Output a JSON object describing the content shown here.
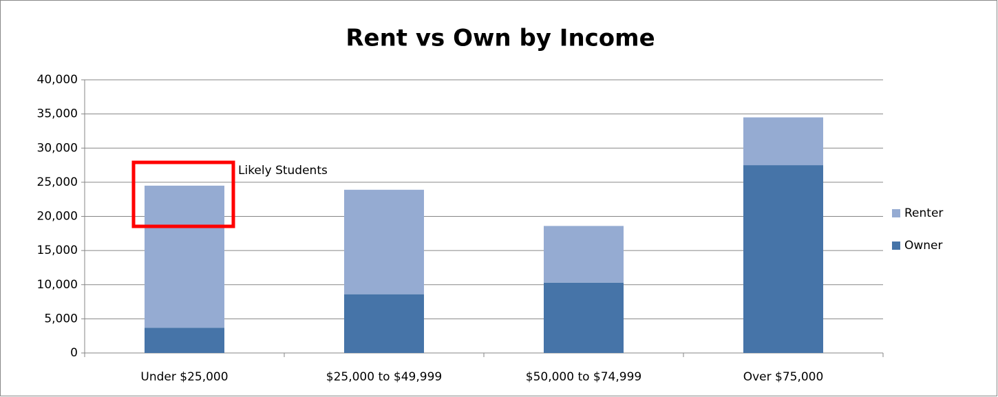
{
  "chart_data": {
    "type": "stacked_bar",
    "title": "Rent vs Own by Income",
    "categories": [
      "Under $25,000",
      "$25,000 to $49,999",
      "$50,000 to $74,999",
      "Over $75,000"
    ],
    "series": [
      {
        "name": "Owner",
        "color": "#4674a8",
        "values": [
          3700,
          8600,
          10300,
          27500
        ]
      },
      {
        "name": "Renter",
        "color": "#95abd2",
        "values": [
          20800,
          15300,
          8300,
          7000
        ]
      }
    ],
    "ylim": [
      0,
      40000
    ],
    "yticks": [
      0,
      {
        "value": 5000,
        "label": "5,000"
      },
      {
        "value": 10000,
        "label": "10,000"
      },
      {
        "value": 15000,
        "label": "15,000"
      },
      {
        "value": 20000,
        "label": "20,000"
      },
      {
        "value": 25000,
        "label": "25,000"
      },
      {
        "value": 30000,
        "label": "30,000"
      },
      {
        "value": 35000,
        "label": "35,000"
      },
      {
        "value": 40000,
        "label": "40,000"
      }
    ],
    "grid": true,
    "legend": "right",
    "annotation": "Likely Students"
  }
}
